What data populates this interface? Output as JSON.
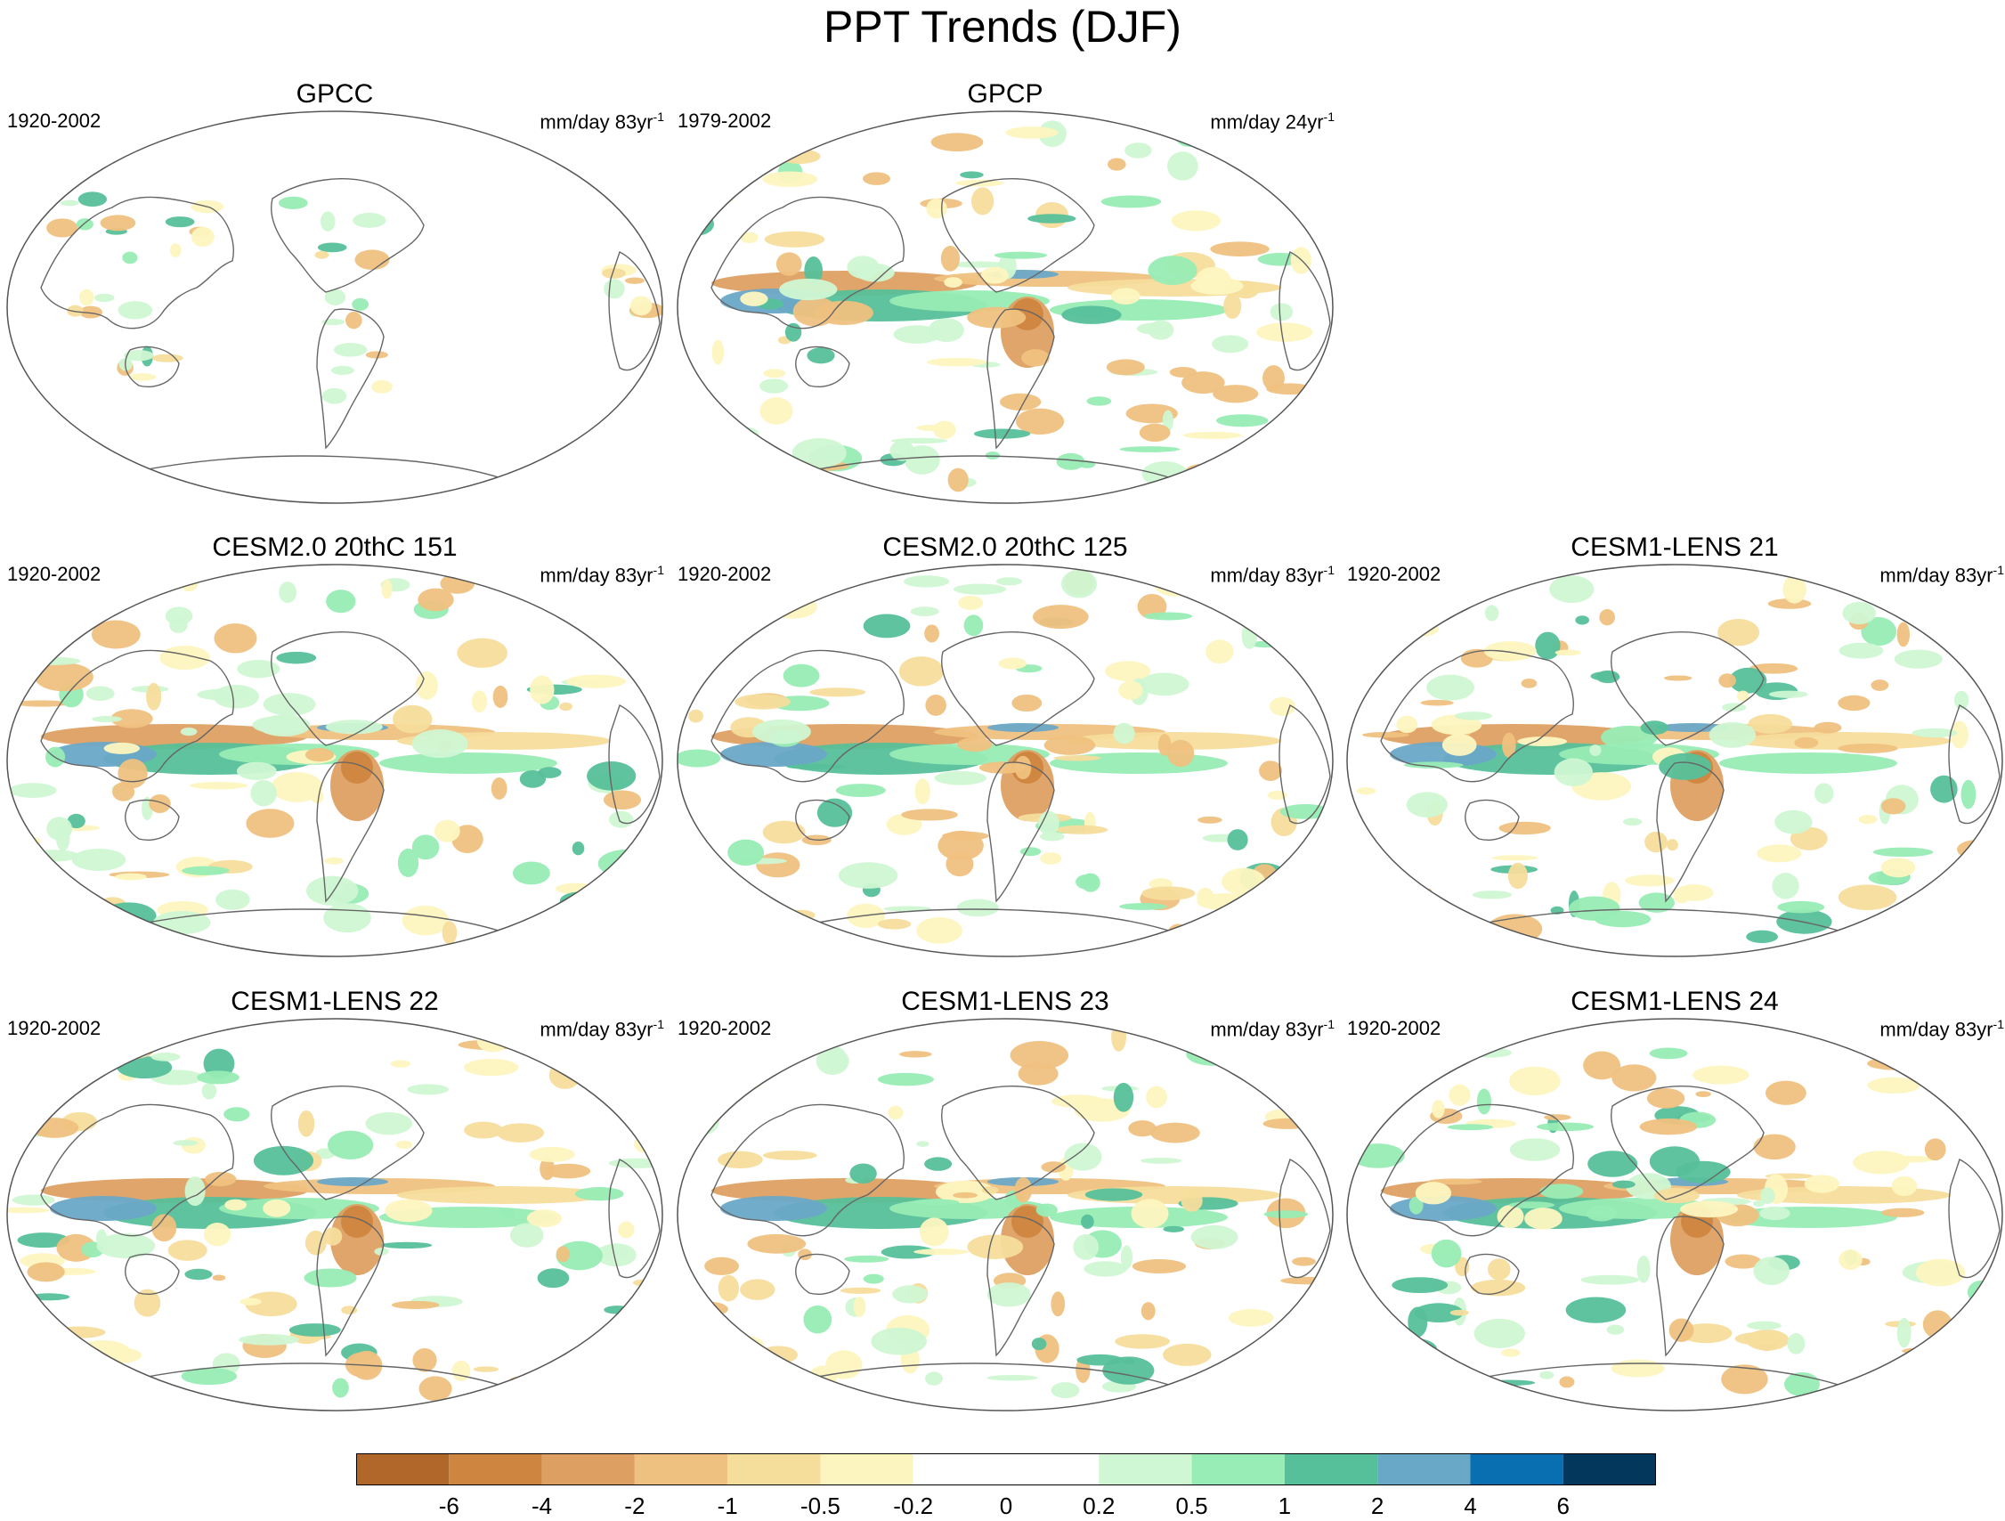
{
  "title": "PPT Trends (DJF)",
  "panels": [
    {
      "title": "GPCC",
      "period": "1920-2002",
      "units": "mm/day 83yr",
      "units_exp": "-1",
      "sparse": true
    },
    {
      "title": "GPCP",
      "period": "1979-2002",
      "units": "mm/day 24yr",
      "units_exp": "-1",
      "sparse": false
    },
    {
      "title": "CESM2.0 20thC 151",
      "period": "1920-2002",
      "units": "mm/day 83yr",
      "units_exp": "-1",
      "sparse": false
    },
    {
      "title": "CESM2.0 20thC 125",
      "period": "1920-2002",
      "units": "mm/day 83yr",
      "units_exp": "-1",
      "sparse": false
    },
    {
      "title": "CESM1-LENS 21",
      "period": "1920-2002",
      "units": "mm/day 83yr",
      "units_exp": "-1",
      "sparse": false
    },
    {
      "title": "CESM1-LENS 22",
      "period": "1920-2002",
      "units": "mm/day 83yr",
      "units_exp": "-1",
      "sparse": false
    },
    {
      "title": "CESM1-LENS 23",
      "period": "1920-2002",
      "units": "mm/day 83yr",
      "units_exp": "-1",
      "sparse": false
    },
    {
      "title": "CESM1-LENS 24",
      "period": "1920-2002",
      "units": "mm/day 83yr",
      "units_exp": "-1",
      "sparse": false
    }
  ],
  "colorbar": {
    "levels": [
      "-6",
      "-4",
      "-2",
      "-1",
      "-0.5",
      "-0.2",
      "0",
      "0.2",
      "0.5",
      "1",
      "2",
      "4",
      "6"
    ],
    "colors": [
      "#b2672a",
      "#cd853f",
      "#dea062",
      "#efc180",
      "#f5dd9c",
      "#fdf5c0",
      "#ffffff",
      "#ffffff",
      "#cff7d3",
      "#98ecb5",
      "#56c09a",
      "#6aa8c8",
      "#0a6fb0",
      "#03375c"
    ]
  },
  "chart_data": {
    "type": "heatmap",
    "title": "PPT Trends (DJF)",
    "variable": "precipitation trend",
    "units": "mm/day per period",
    "projection": "Robinson (Pacific-centered)",
    "colorbar_levels": [
      -6,
      -4,
      -2,
      -1,
      -0.5,
      -0.2,
      0,
      0.2,
      0.5,
      1,
      2,
      4,
      6
    ],
    "panels": [
      {
        "name": "GPCC",
        "period": "1920-2002",
        "coverage": "land only"
      },
      {
        "name": "GPCP",
        "period": "1979-2002",
        "coverage": "global"
      },
      {
        "name": "CESM2.0 20thC 151",
        "period": "1920-2002",
        "coverage": "global"
      },
      {
        "name": "CESM2.0 20thC 125",
        "period": "1920-2002",
        "coverage": "global"
      },
      {
        "name": "CESM1-LENS 21",
        "period": "1920-2002",
        "coverage": "global"
      },
      {
        "name": "CESM1-LENS 22",
        "period": "1920-2002",
        "coverage": "global"
      },
      {
        "name": "CESM1-LENS 23",
        "period": "1920-2002",
        "coverage": "global"
      },
      {
        "name": "CESM1-LENS 24",
        "period": "1920-2002",
        "coverage": "global"
      }
    ]
  }
}
